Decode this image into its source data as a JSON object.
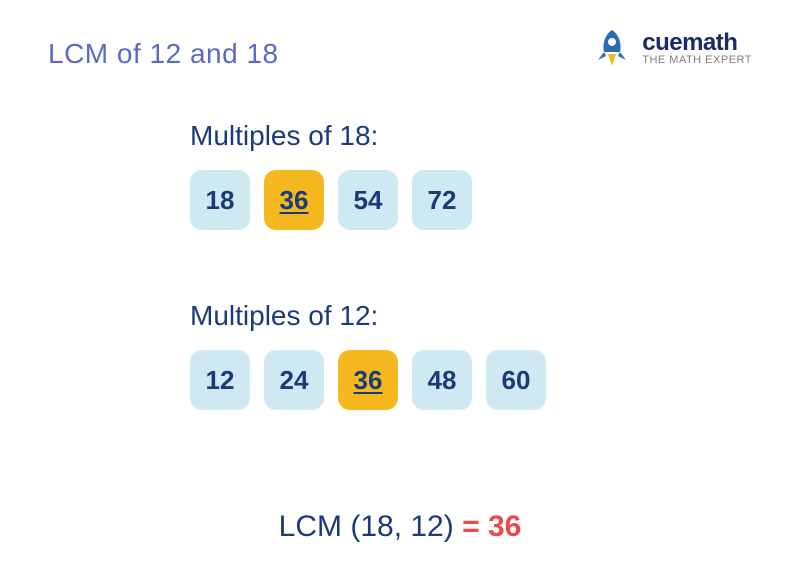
{
  "colors": {
    "title": "#5c6ac4",
    "logo_name": "#1b2a6b",
    "logo_tag": "#7d7d7d",
    "section_label": "#1b3a7a",
    "tile_bg": "#cfe9f3",
    "tile_text": "#1b3a7a",
    "tile_hl_bg": "#f5b91f",
    "tile_hl_text": "#1b3a7a",
    "result_text": "#1b3a7a",
    "result_eq": "#e94b4b",
    "result_ans": "#e94b4b",
    "rocket_body": "#2b6cb0",
    "rocket_flame": "#f5b91f"
  },
  "title": "LCM of 12 and 18",
  "logo": {
    "name": "cuemath",
    "tag": "THE MATH EXPERT"
  },
  "sections": [
    {
      "label": "Multiples of 18:",
      "tiles": [
        {
          "value": "18",
          "highlight": false
        },
        {
          "value": "36",
          "highlight": true
        },
        {
          "value": "54",
          "highlight": false
        },
        {
          "value": "72",
          "highlight": false
        }
      ]
    },
    {
      "label": "Multiples of 12:",
      "tiles": [
        {
          "value": "12",
          "highlight": false
        },
        {
          "value": "24",
          "highlight": false
        },
        {
          "value": "36",
          "highlight": true
        },
        {
          "value": "48",
          "highlight": false
        },
        {
          "value": "60",
          "highlight": false
        }
      ]
    }
  ],
  "result": {
    "left": "LCM (18, 12) ",
    "eq": "=",
    "ans": " 36"
  }
}
